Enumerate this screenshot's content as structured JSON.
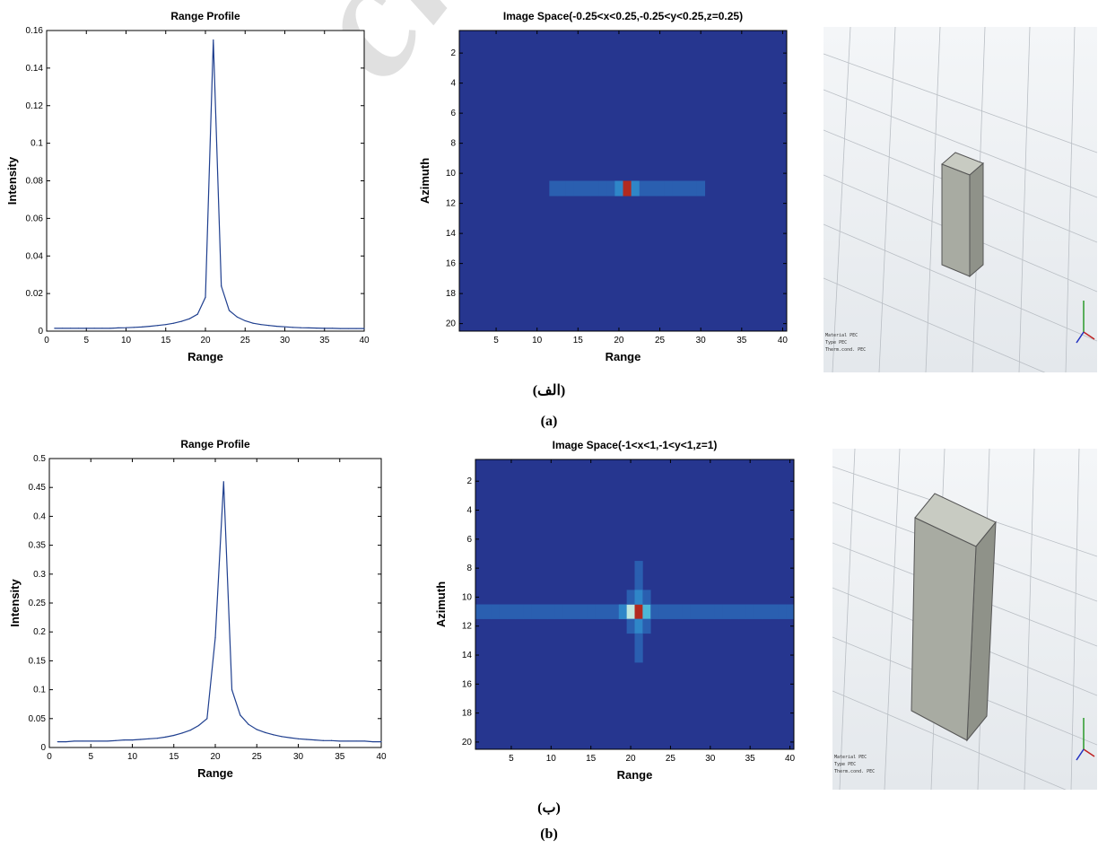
{
  "colors": {
    "line": "#1f3f8f",
    "heat_background": "#26368f",
    "cmap": [
      "#26368f",
      "#2a5fb0",
      "#2f86c8",
      "#4cb8d8",
      "#bfe8df",
      "#ffe45a",
      "#f07a22",
      "#b22a1f"
    ]
  },
  "watermark": "Archive of SID",
  "captions": {
    "a_fa": "(الف)",
    "a_en": "(a)",
    "b_fa": "(ب)",
    "b_en": "(b)"
  },
  "render_legend": {
    "rows": [
      "Material",
      "Type",
      "Therm.cond."
    ],
    "values": [
      "PEC",
      "PEC",
      "PEC"
    ]
  },
  "chart_data": [
    {
      "id": "a-profile",
      "type": "line",
      "title": "Range Profile",
      "xlabel": "Range",
      "ylabel": "Intensity",
      "xlim": [
        0,
        40
      ],
      "ylim": [
        0,
        0.16
      ],
      "xticks": [
        "0",
        "5",
        "10",
        "15",
        "20",
        "25",
        "30",
        "35",
        "40"
      ],
      "yticks": [
        "0",
        "0.02",
        "0.04",
        "0.06",
        "0.08",
        "0.1",
        "0.12",
        "0.14",
        "0.16"
      ],
      "grid": false,
      "x": [
        1,
        2,
        3,
        4,
        5,
        6,
        7,
        8,
        9,
        10,
        11,
        12,
        13,
        14,
        15,
        16,
        17,
        18,
        19,
        20,
        21,
        22,
        23,
        24,
        25,
        26,
        27,
        28,
        29,
        30,
        31,
        32,
        33,
        34,
        35,
        36,
        37,
        38,
        39,
        40
      ],
      "y": [
        0.0015,
        0.0015,
        0.0015,
        0.0015,
        0.0015,
        0.0015,
        0.0015,
        0.0015,
        0.0017,
        0.0018,
        0.002,
        0.0022,
        0.0026,
        0.003,
        0.0035,
        0.0042,
        0.0052,
        0.0066,
        0.009,
        0.018,
        0.155,
        0.024,
        0.011,
        0.0075,
        0.0055,
        0.0042,
        0.0035,
        0.003,
        0.0026,
        0.0023,
        0.002,
        0.0018,
        0.0017,
        0.0016,
        0.0015,
        0.0015,
        0.0014,
        0.0014,
        0.0014,
        0.0014
      ]
    },
    {
      "id": "a-image",
      "type": "heatmap",
      "title": "Image Space(-0.25<x<0.25,-0.25<y<0.25,z=0.25)",
      "xlabel": "Range",
      "ylabel": "Azimuth",
      "xlim": [
        0.5,
        40.5
      ],
      "ylim": [
        20.5,
        0.5
      ],
      "xticks": [
        "5",
        "10",
        "15",
        "20",
        "25",
        "30",
        "35",
        "40"
      ],
      "yticks": [
        "2",
        "4",
        "6",
        "8",
        "10",
        "12",
        "14",
        "16",
        "18",
        "20"
      ],
      "rows": 20,
      "cols": 40,
      "background": 0,
      "cells": [
        {
          "row": 11,
          "col": 12,
          "v": 1
        },
        {
          "row": 11,
          "col": 13,
          "v": 1
        },
        {
          "row": 11,
          "col": 14,
          "v": 1
        },
        {
          "row": 11,
          "col": 15,
          "v": 1
        },
        {
          "row": 11,
          "col": 16,
          "v": 1
        },
        {
          "row": 11,
          "col": 17,
          "v": 1
        },
        {
          "row": 11,
          "col": 18,
          "v": 1
        },
        {
          "row": 11,
          "col": 19,
          "v": 1
        },
        {
          "row": 11,
          "col": 20,
          "v": 2
        },
        {
          "row": 11,
          "col": 21,
          "v": 7
        },
        {
          "row": 11,
          "col": 22,
          "v": 2
        },
        {
          "row": 11,
          "col": 23,
          "v": 1
        },
        {
          "row": 11,
          "col": 24,
          "v": 1
        },
        {
          "row": 11,
          "col": 25,
          "v": 1
        },
        {
          "row": 11,
          "col": 26,
          "v": 1
        },
        {
          "row": 11,
          "col": 27,
          "v": 1
        },
        {
          "row": 11,
          "col": 28,
          "v": 1
        },
        {
          "row": 11,
          "col": 29,
          "v": 1
        },
        {
          "row": 11,
          "col": 30,
          "v": 1
        }
      ]
    },
    {
      "id": "b-profile",
      "type": "line",
      "title": "Range Profile",
      "xlabel": "Range",
      "ylabel": "Intensity",
      "xlim": [
        0,
        40
      ],
      "ylim": [
        0,
        0.5
      ],
      "xticks": [
        "0",
        "5",
        "10",
        "15",
        "20",
        "25",
        "30",
        "35",
        "40"
      ],
      "yticks": [
        "0",
        "0.05",
        "0.1",
        "0.15",
        "0.2",
        "0.25",
        "0.3",
        "0.35",
        "0.4",
        "0.45",
        "0.5"
      ],
      "grid": false,
      "x": [
        1,
        2,
        3,
        4,
        5,
        6,
        7,
        8,
        9,
        10,
        11,
        12,
        13,
        14,
        15,
        16,
        17,
        18,
        19,
        20,
        21,
        22,
        23,
        24,
        25,
        26,
        27,
        28,
        29,
        30,
        31,
        32,
        33,
        34,
        35,
        36,
        37,
        38,
        39,
        40
      ],
      "y": [
        0.01,
        0.01,
        0.011,
        0.011,
        0.011,
        0.011,
        0.011,
        0.012,
        0.013,
        0.013,
        0.014,
        0.015,
        0.016,
        0.018,
        0.021,
        0.025,
        0.03,
        0.038,
        0.05,
        0.19,
        0.46,
        0.1,
        0.056,
        0.04,
        0.031,
        0.026,
        0.022,
        0.019,
        0.017,
        0.015,
        0.014,
        0.013,
        0.012,
        0.012,
        0.011,
        0.011,
        0.011,
        0.011,
        0.01,
        0.01
      ]
    },
    {
      "id": "b-image",
      "type": "heatmap",
      "title": "Image Space(-1<x<1,-1<y<1,z=1)",
      "xlabel": "Range",
      "ylabel": "Azimuth",
      "xlim": [
        0.5,
        40.5
      ],
      "ylim": [
        20.5,
        0.5
      ],
      "xticks": [
        "5",
        "10",
        "15",
        "20",
        "25",
        "30",
        "35",
        "40"
      ],
      "yticks": [
        "2",
        "4",
        "6",
        "8",
        "10",
        "12",
        "14",
        "16",
        "18",
        "20"
      ],
      "rows": 20,
      "cols": 40,
      "background": 0,
      "cells": [
        {
          "row": 11,
          "col": 1,
          "v": 1
        },
        {
          "row": 11,
          "col": 2,
          "v": 1
        },
        {
          "row": 11,
          "col": 3,
          "v": 1
        },
        {
          "row": 11,
          "col": 4,
          "v": 1
        },
        {
          "row": 11,
          "col": 5,
          "v": 1
        },
        {
          "row": 11,
          "col": 6,
          "v": 1
        },
        {
          "row": 11,
          "col": 7,
          "v": 1
        },
        {
          "row": 11,
          "col": 8,
          "v": 1
        },
        {
          "row": 11,
          "col": 9,
          "v": 1
        },
        {
          "row": 11,
          "col": 10,
          "v": 1
        },
        {
          "row": 11,
          "col": 11,
          "v": 1
        },
        {
          "row": 11,
          "col": 12,
          "v": 1
        },
        {
          "row": 11,
          "col": 13,
          "v": 1
        },
        {
          "row": 11,
          "col": 14,
          "v": 1
        },
        {
          "row": 11,
          "col": 15,
          "v": 1
        },
        {
          "row": 11,
          "col": 16,
          "v": 1
        },
        {
          "row": 11,
          "col": 17,
          "v": 1
        },
        {
          "row": 11,
          "col": 18,
          "v": 1
        },
        {
          "row": 11,
          "col": 19,
          "v": 2
        },
        {
          "row": 11,
          "col": 20,
          "v": 4
        },
        {
          "row": 11,
          "col": 21,
          "v": 7
        },
        {
          "row": 11,
          "col": 22,
          "v": 3
        },
        {
          "row": 11,
          "col": 23,
          "v": 1
        },
        {
          "row": 11,
          "col": 24,
          "v": 1
        },
        {
          "row": 11,
          "col": 25,
          "v": 1
        },
        {
          "row": 11,
          "col": 26,
          "v": 1
        },
        {
          "row": 11,
          "col": 27,
          "v": 1
        },
        {
          "row": 11,
          "col": 28,
          "v": 1
        },
        {
          "row": 11,
          "col": 29,
          "v": 1
        },
        {
          "row": 11,
          "col": 30,
          "v": 1
        },
        {
          "row": 11,
          "col": 31,
          "v": 1
        },
        {
          "row": 11,
          "col": 32,
          "v": 1
        },
        {
          "row": 11,
          "col": 33,
          "v": 1
        },
        {
          "row": 11,
          "col": 34,
          "v": 1
        },
        {
          "row": 11,
          "col": 35,
          "v": 1
        },
        {
          "row": 11,
          "col": 36,
          "v": 1
        },
        {
          "row": 11,
          "col": 37,
          "v": 1
        },
        {
          "row": 11,
          "col": 38,
          "v": 1
        },
        {
          "row": 11,
          "col": 39,
          "v": 1
        },
        {
          "row": 11,
          "col": 40,
          "v": 1
        },
        {
          "row": 8,
          "col": 21,
          "v": 1
        },
        {
          "row": 9,
          "col": 21,
          "v": 1
        },
        {
          "row": 10,
          "col": 20,
          "v": 1
        },
        {
          "row": 10,
          "col": 21,
          "v": 2
        },
        {
          "row": 10,
          "col": 22,
          "v": 1
        },
        {
          "row": 12,
          "col": 20,
          "v": 1
        },
        {
          "row": 12,
          "col": 21,
          "v": 2
        },
        {
          "row": 12,
          "col": 22,
          "v": 1
        },
        {
          "row": 13,
          "col": 21,
          "v": 1
        },
        {
          "row": 14,
          "col": 21,
          "v": 1
        }
      ]
    }
  ]
}
